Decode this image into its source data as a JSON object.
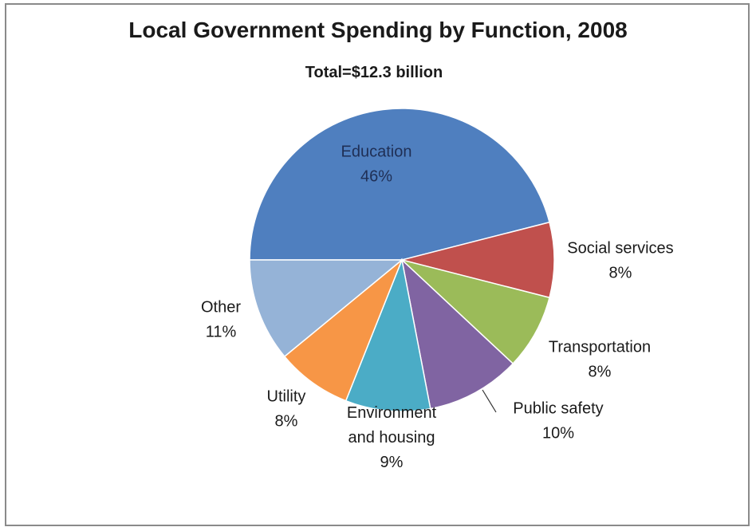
{
  "chart_data": {
    "type": "pie",
    "title": "Local Government Spending by Function, 2008",
    "subtitle": "Total=$12.3 billion",
    "slices": [
      {
        "label": "Education",
        "line2": "",
        "pct": "46%",
        "value": 46,
        "color": "#4f7fbf"
      },
      {
        "label": "Social services",
        "line2": "",
        "pct": "8%",
        "value": 8,
        "color": "#c0504d"
      },
      {
        "label": "Transportation",
        "line2": "",
        "pct": "8%",
        "value": 8,
        "color": "#9bbb59"
      },
      {
        "label": "Public safety",
        "line2": "",
        "pct": "10%",
        "value": 10,
        "color": "#8064a2"
      },
      {
        "label": "Environment",
        "line2": "and housing",
        "pct": "9%",
        "value": 9,
        "color": "#4bacc6"
      },
      {
        "label": "Utility",
        "line2": "",
        "pct": "8%",
        "value": 8,
        "color": "#f79646"
      },
      {
        "label": "Other",
        "line2": "",
        "pct": "11%",
        "value": 11,
        "color": "#95b3d7"
      }
    ]
  }
}
